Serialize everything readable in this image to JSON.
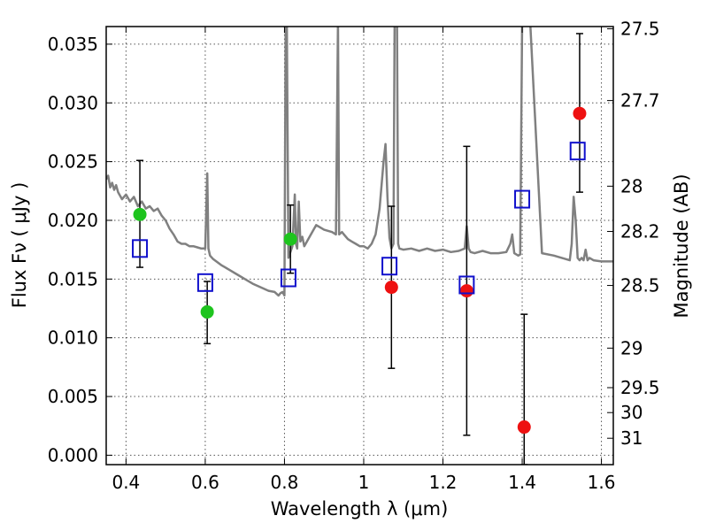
{
  "chart_data": {
    "type": "scatter",
    "xlabel": "Wavelength  λ (μm)",
    "ylabel": "Flux  Fν  ( μJy )",
    "ylabel_right": "Magnitude (AB)",
    "xlim": [
      0.35,
      1.63
    ],
    "ylim": [
      -0.0008,
      0.0365
    ],
    "grid": true,
    "x_ticks": [
      0.4,
      0.6,
      0.8,
      1.0,
      1.2,
      1.4,
      1.6
    ],
    "x_tick_labels": [
      "0.4",
      "0.6",
      "0.8",
      "1",
      "1.2",
      "1.4",
      "1.6"
    ],
    "y_ticks": [
      0.0,
      0.005,
      0.01,
      0.015,
      0.02,
      0.025,
      0.03,
      0.035
    ],
    "y_tick_labels": [
      "0.000",
      "0.005",
      "0.010",
      "0.015",
      "0.020",
      "0.025",
      "0.030",
      "0.035"
    ],
    "right_ticks": [
      {
        "mag": 27.5,
        "label": "27.5"
      },
      {
        "mag": 27.7,
        "label": "27.7"
      },
      {
        "mag": 28.0,
        "label": "28"
      },
      {
        "mag": 28.2,
        "label": "28.2"
      },
      {
        "mag": 28.5,
        "label": "28.5"
      },
      {
        "mag": 29.0,
        "label": "29"
      },
      {
        "mag": 29.5,
        "label": "29.5"
      },
      {
        "mag": 30.0,
        "label": "30"
      },
      {
        "mag": 31.0,
        "label": "31"
      }
    ],
    "colors": {
      "spectrum": "#808080",
      "green": "#1ec41e",
      "red": "#ee1111",
      "model_box": "#1010cc",
      "errorbar": "#000000",
      "grid": "#555555"
    },
    "spectrum": {
      "x": [
        0.35,
        0.355,
        0.36,
        0.365,
        0.37,
        0.375,
        0.38,
        0.39,
        0.4,
        0.41,
        0.42,
        0.43,
        0.44,
        0.45,
        0.46,
        0.47,
        0.48,
        0.49,
        0.5,
        0.51,
        0.52,
        0.53,
        0.54,
        0.55,
        0.56,
        0.57,
        0.58,
        0.59,
        0.6,
        0.605,
        0.608,
        0.612,
        0.62,
        0.64,
        0.66,
        0.68,
        0.7,
        0.72,
        0.74,
        0.76,
        0.775,
        0.785,
        0.79,
        0.795,
        0.8,
        0.803,
        0.806,
        0.81,
        0.82,
        0.826,
        0.829,
        0.832,
        0.836,
        0.84,
        0.845,
        0.85,
        0.86,
        0.87,
        0.88,
        0.9,
        0.92,
        0.93,
        0.935,
        0.938,
        0.945,
        0.95,
        0.96,
        0.97,
        0.98,
        0.99,
        1.0,
        1.01,
        1.02,
        1.03,
        1.04,
        1.05,
        1.055,
        1.06,
        1.065,
        1.07,
        1.075,
        1.078,
        1.081,
        1.084,
        1.087,
        1.09,
        1.1,
        1.12,
        1.14,
        1.16,
        1.18,
        1.2,
        1.22,
        1.24,
        1.255,
        1.26,
        1.265,
        1.27,
        1.28,
        1.3,
        1.32,
        1.34,
        1.36,
        1.37,
        1.375,
        1.38,
        1.39,
        1.395,
        1.4,
        1.41,
        1.42,
        1.45,
        1.48,
        1.5,
        1.52,
        1.525,
        1.53,
        1.535,
        1.54,
        1.545,
        1.55,
        1.555,
        1.56,
        1.565,
        1.57,
        1.58,
        1.6,
        1.63
      ],
      "y": [
        0.0235,
        0.0238,
        0.0228,
        0.0232,
        0.0226,
        0.023,
        0.0224,
        0.0218,
        0.0222,
        0.0216,
        0.022,
        0.0212,
        0.0216,
        0.021,
        0.0212,
        0.0208,
        0.021,
        0.0204,
        0.02,
        0.0193,
        0.0188,
        0.0182,
        0.018,
        0.018,
        0.0178,
        0.0178,
        0.0177,
        0.0176,
        0.0176,
        0.024,
        0.0176,
        0.017,
        0.0167,
        0.0162,
        0.0158,
        0.0154,
        0.015,
        0.0146,
        0.0143,
        0.014,
        0.0139,
        0.0136,
        0.0138,
        0.0139,
        0.0136,
        0.037,
        0.037,
        0.0168,
        0.0178,
        0.0222,
        0.018,
        0.0176,
        0.0216,
        0.0182,
        0.0186,
        0.0178,
        0.0184,
        0.019,
        0.0196,
        0.0192,
        0.019,
        0.0188,
        0.037,
        0.0188,
        0.019,
        0.0188,
        0.0184,
        0.0182,
        0.018,
        0.0178,
        0.0178,
        0.0176,
        0.018,
        0.0188,
        0.021,
        0.025,
        0.0265,
        0.022,
        0.0185,
        0.0176,
        0.018,
        0.037,
        0.037,
        0.037,
        0.018,
        0.0176,
        0.0175,
        0.0176,
        0.0174,
        0.0176,
        0.0174,
        0.0175,
        0.0173,
        0.0174,
        0.0176,
        0.0195,
        0.0176,
        0.0173,
        0.0172,
        0.0174,
        0.0172,
        0.0172,
        0.0173,
        0.018,
        0.0188,
        0.0172,
        0.017,
        0.0171,
        0.037,
        0.037,
        0.037,
        0.0172,
        0.017,
        0.0168,
        0.0166,
        0.018,
        0.022,
        0.02,
        0.0168,
        0.0166,
        0.0168,
        0.0166,
        0.0175,
        0.0166,
        0.0168,
        0.0166,
        0.0165,
        0.0165
      ]
    },
    "series": [
      {
        "marker": "circle",
        "color": "green",
        "points": [
          {
            "x": 0.435,
            "y": 0.0205,
            "err_lo": 0.016,
            "err_hi": 0.0251
          },
          {
            "x": 0.605,
            "y": 0.0122,
            "err_lo": 0.0095,
            "err_hi": 0.0148
          },
          {
            "x": 0.815,
            "y": 0.0184,
            "err_lo": 0.0155,
            "err_hi": 0.0213
          }
        ]
      },
      {
        "marker": "circle",
        "color": "red",
        "points": [
          {
            "x": 1.07,
            "y": 0.0143,
            "err_lo": 0.0074,
            "err_hi": 0.0212
          },
          {
            "x": 1.26,
            "y": 0.014,
            "err_lo": 0.0017,
            "err_hi": 0.0263
          },
          {
            "x": 1.405,
            "y": 0.0024,
            "err_lo": -0.0008,
            "err_hi": 0.012
          },
          {
            "x": 1.545,
            "y": 0.0291,
            "err_lo": 0.0224,
            "err_hi": 0.0359
          }
        ]
      },
      {
        "marker": "square-open",
        "color": "model_box",
        "points": [
          {
            "x": 0.435,
            "y": 0.0176
          },
          {
            "x": 0.6,
            "y": 0.0147
          },
          {
            "x": 0.81,
            "y": 0.0151
          },
          {
            "x": 1.065,
            "y": 0.0161
          },
          {
            "x": 1.26,
            "y": 0.0145
          },
          {
            "x": 1.4,
            "y": 0.0218
          },
          {
            "x": 1.54,
            "y": 0.0259
          }
        ]
      }
    ]
  }
}
